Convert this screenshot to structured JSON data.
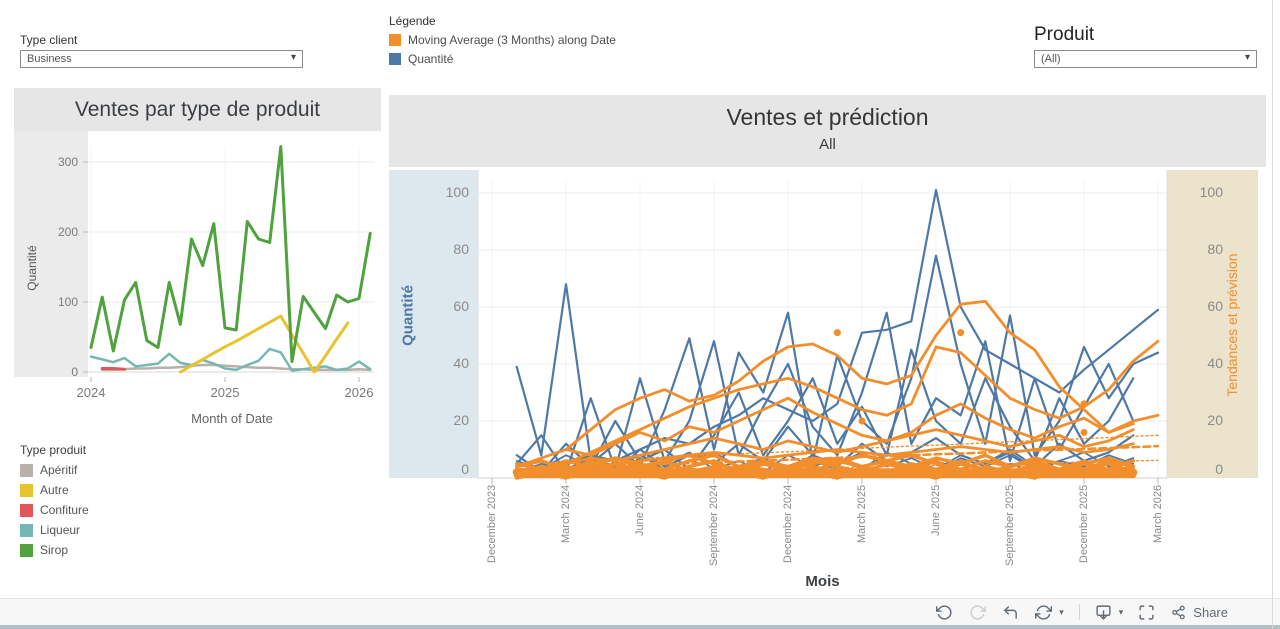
{
  "header": {
    "type_client_label": "Type client",
    "type_client_value": "Business",
    "legend_title": "Légende",
    "legend_items": [
      {
        "label": "Moving Average (3 Months) along Date",
        "color": "#f28e2b"
      },
      {
        "label": "Quantité",
        "color": "#4e79a7"
      }
    ],
    "produit_label": "Produit",
    "produit_value": "(All)"
  },
  "left_panel": {
    "title": "Ventes par type de produit",
    "legend_title": "Type produit",
    "legend_items": [
      {
        "label": "Apéritif",
        "color": "#b9b0ab"
      },
      {
        "label": "Autre",
        "color": "#e8c32e"
      },
      {
        "label": "Confiture",
        "color": "#e15759"
      },
      {
        "label": "Liqueur",
        "color": "#76b7b2"
      },
      {
        "label": "Sirop",
        "color": "#4fa23d"
      }
    ]
  },
  "toolbar": {
    "icons": [
      "undo",
      "redo",
      "revert",
      "refresh",
      "download",
      "fullscreen",
      "share"
    ],
    "share_label": "Share"
  },
  "chart_data": [
    {
      "type": "line",
      "title": "Ventes par type de produit",
      "xlabel": "Month of Date",
      "ylabel": "Quantité",
      "x_ticks": [
        {
          "label": "2024",
          "month": 0
        },
        {
          "label": "2025",
          "month": 12
        },
        {
          "label": "2026",
          "month": 24
        }
      ],
      "y_ticks": [
        0,
        100,
        200,
        300
      ],
      "ylim": [
        0,
        330
      ],
      "months_start": "2024-01",
      "series": [
        {
          "name": "Apéritif",
          "color": "#b9b0ab",
          "width": 2.5,
          "values": [
            null,
            3,
            3,
            4,
            5,
            5,
            6,
            6,
            7,
            9,
            10,
            10,
            9,
            8,
            7,
            6,
            6,
            5,
            4,
            4,
            3,
            3,
            3,
            3,
            4,
            3
          ]
        },
        {
          "name": "Confiture",
          "color": "#e15759",
          "width": 3,
          "values": [
            null,
            5,
            5,
            4,
            null,
            null,
            null,
            null,
            null,
            null,
            null,
            null,
            null,
            null,
            null,
            null,
            null,
            null,
            null,
            null,
            null,
            null,
            null,
            null,
            null,
            null
          ]
        },
        {
          "name": "Liqueur",
          "color": "#76b7b2",
          "width": 2.5,
          "values": [
            22,
            18,
            14,
            20,
            8,
            10,
            12,
            26,
            13,
            10,
            17,
            12,
            5,
            3,
            10,
            16,
            33,
            28,
            2,
            4,
            6,
            8,
            3,
            5,
            15,
            4
          ]
        },
        {
          "name": "Autre",
          "color": "#e8c32e",
          "width": 3,
          "values": [
            null,
            null,
            null,
            null,
            null,
            null,
            null,
            null,
            0,
            9,
            18,
            27,
            36,
            44,
            53,
            62,
            71,
            80,
            53,
            27,
            0,
            23,
            47,
            70,
            null,
            null
          ]
        },
        {
          "name": "Sirop",
          "color": "#4fa23d",
          "width": 3,
          "values": [
            35,
            107,
            30,
            103,
            128,
            45,
            35,
            128,
            68,
            190,
            152,
            212,
            63,
            60,
            215,
            190,
            185,
            322,
            15,
            108,
            85,
            62,
            110,
            100,
            105,
            198
          ]
        }
      ]
    },
    {
      "type": "line",
      "title": "Ventes et prédiction",
      "subtitle": "All",
      "xlabel": "Mois",
      "ylabel_left": "Quantité",
      "ylabel_right": "Tendances et prévision",
      "legend": [
        "Moving Average (3 Months) along Date",
        "Quantité"
      ],
      "x_ticks": [
        {
          "label": "December 2023",
          "month": 0
        },
        {
          "label": "March 2024",
          "month": 3
        },
        {
          "label": "June 2024",
          "month": 6
        },
        {
          "label": "September 2024",
          "month": 9
        },
        {
          "label": "December 2024",
          "month": 12
        },
        {
          "label": "March 2025",
          "month": 15
        },
        {
          "label": "June 2025",
          "month": 18
        },
        {
          "label": "September 2025",
          "month": 21
        },
        {
          "label": "December 2025",
          "month": 24
        },
        {
          "label": "March 2026",
          "month": 27
        }
      ],
      "y_ticks": [
        0,
        20,
        40,
        60,
        80,
        100
      ],
      "ylim": [
        0,
        105
      ],
      "color_quantite": "#4e79a7",
      "color_moving_avg": "#f28e2b",
      "axis_band_left_color": "#dce8ee",
      "axis_band_right_color": "#ece3cc",
      "noise_quantite": [
        {
          "width": 1.8,
          "values": [
            null,
            2,
            5,
            3,
            7,
            4,
            8,
            3,
            6,
            9,
            4,
            7,
            3,
            8,
            5,
            9,
            4,
            7,
            3,
            8,
            5,
            9,
            3,
            6,
            4,
            8,
            5,
            null
          ]
        },
        {
          "width": 1.8,
          "values": [
            null,
            6,
            3,
            8,
            4,
            2,
            7,
            5,
            9,
            3,
            6,
            2,
            8,
            4,
            7,
            3,
            9,
            5,
            2,
            7,
            4,
            8,
            3,
            6,
            9,
            4,
            7,
            null
          ]
        },
        {
          "width": 1.8,
          "values": [
            null,
            1,
            4,
            2,
            5,
            3,
            1,
            6,
            2,
            4,
            1,
            5,
            2,
            6,
            3,
            1,
            5,
            2,
            6,
            3,
            1,
            5,
            2,
            6,
            1,
            3,
            2,
            null
          ]
        }
      ],
      "series_quantite": [
        {
          "width": 2.2,
          "values": [
            null,
            39,
            8,
            68,
            6,
            2,
            10,
            4,
            8,
            5,
            12,
            6,
            18,
            8,
            4,
            12,
            6,
            9,
            14,
            8,
            5,
            10,
            4,
            12,
            6,
            9,
            15,
            null
          ]
        },
        {
          "width": 2.2,
          "values": [
            null,
            2,
            3,
            5,
            8,
            6,
            10,
            14,
            12,
            18,
            22,
            28,
            24,
            20,
            26,
            51,
            52,
            55,
            101,
            60,
            45,
            40,
            35,
            30,
            38,
            45,
            52,
            59
          ]
        },
        {
          "width": 2.2,
          "values": [
            null,
            1,
            2,
            3,
            5,
            12,
            4,
            24,
            49,
            10,
            44,
            30,
            58,
            6,
            43,
            20,
            12,
            35,
            78,
            40,
            12,
            57,
            8,
            20,
            46,
            28,
            40,
            44
          ]
        },
        {
          "width": 2.2,
          "values": [
            null,
            5,
            15,
            2,
            28,
            3,
            35,
            6,
            20,
            48,
            8,
            25,
            40,
            18,
            8,
            30,
            58,
            12,
            28,
            22,
            48,
            6,
            35,
            10,
            25,
            40,
            20,
            null
          ]
        },
        {
          "width": 2.2,
          "values": [
            null,
            8,
            2,
            12,
            4,
            20,
            6,
            10,
            3,
            15,
            30,
            8,
            20,
            35,
            12,
            25,
            8,
            45,
            20,
            12,
            35,
            18,
            6,
            28,
            12,
            20,
            35,
            null
          ]
        }
      ],
      "noise_moving_avg": [
        {
          "width": 8,
          "values": [
            null,
            2,
            2,
            2,
            2,
            2,
            2,
            2,
            2,
            2,
            2,
            2,
            2,
            2,
            2,
            2,
            2,
            2,
            2,
            2,
            2,
            2,
            2,
            2,
            2,
            2,
            2,
            null
          ]
        },
        {
          "width": 6,
          "values": [
            null,
            1,
            1,
            1,
            1,
            1,
            1,
            1,
            1,
            1,
            1,
            1,
            1,
            1,
            1,
            1,
            1,
            1,
            1,
            1,
            1,
            1,
            1,
            1,
            1,
            1,
            1,
            null
          ]
        },
        {
          "width": 3.5,
          "values": [
            null,
            3,
            1,
            4,
            2,
            5,
            3,
            6,
            2,
            4,
            1,
            5,
            3,
            6,
            4,
            2,
            5,
            3,
            6,
            1,
            4,
            2,
            5,
            3,
            6,
            2,
            4,
            null
          ]
        },
        {
          "width": 3.5,
          "values": [
            null,
            1,
            2,
            1,
            3,
            2,
            4,
            1,
            3,
            2,
            4,
            3,
            1,
            4,
            2,
            3,
            1,
            4,
            2,
            5,
            3,
            1,
            4,
            2,
            3,
            5,
            2,
            null
          ]
        },
        {
          "width": 3.5,
          "values": [
            null,
            4,
            6,
            3,
            5,
            7,
            4,
            6,
            8,
            5,
            3,
            6,
            4,
            7,
            5,
            8,
            6,
            4,
            7,
            5,
            8,
            4,
            6,
            3,
            5,
            7,
            4,
            null
          ]
        },
        {
          "width": 3.5,
          "values": [
            null,
            2,
            4,
            2,
            6,
            3,
            5,
            2,
            4,
            6,
            2,
            5,
            3,
            2,
            6,
            4,
            2,
            5,
            3,
            6,
            2,
            4,
            6,
            2,
            5,
            3,
            6,
            null
          ]
        },
        {
          "width": 3.5,
          "values": [
            null,
            0,
            2,
            0,
            3,
            1,
            2,
            0,
            3,
            1,
            2,
            0,
            3,
            2,
            0,
            3,
            1,
            2,
            0,
            3,
            1,
            2,
            0,
            3,
            1,
            2,
            1,
            null
          ]
        },
        {
          "width": 3.5,
          "values": [
            null,
            5,
            3,
            6,
            4,
            7,
            5,
            3,
            6,
            8,
            4,
            6,
            3,
            5,
            7,
            4,
            6,
            8,
            5,
            3,
            6,
            4,
            7,
            5,
            3,
            6,
            4,
            null
          ]
        }
      ],
      "series_moving_avg": [
        {
          "width": 2.8,
          "values": [
            null,
            null,
            null,
            10,
            17,
            24,
            28,
            31,
            27,
            29,
            34,
            41,
            46,
            47,
            43,
            35,
            33,
            36,
            50,
            61,
            62,
            51,
            45,
            32,
            24,
            16,
            19,
            null
          ]
        },
        {
          "width": 2.8,
          "values": [
            null,
            null,
            null,
            5,
            9,
            13,
            17,
            21,
            25,
            28,
            31,
            33,
            35,
            32,
            28,
            24,
            22,
            26,
            46,
            44,
            36,
            28,
            24,
            21,
            25,
            31,
            41,
            48
          ]
        },
        {
          "width": 2.8,
          "values": [
            null,
            4,
            7,
            10,
            8,
            12,
            16,
            13,
            18,
            16,
            20,
            24,
            28,
            23,
            19,
            15,
            13,
            16,
            22,
            26,
            21,
            17,
            14,
            18,
            21,
            16,
            20,
            22
          ]
        },
        {
          "width": 2.8,
          "values": [
            null,
            2,
            3,
            5,
            7,
            6,
            8,
            10,
            12,
            14,
            12,
            10,
            13,
            11,
            9,
            11,
            13,
            15,
            17,
            15,
            13,
            11,
            13,
            15,
            11,
            13,
            17,
            null
          ]
        },
        {
          "width": 2.8,
          "values": [
            null,
            1,
            2,
            3,
            4,
            5,
            6,
            7,
            8,
            9,
            8,
            7,
            8,
            9,
            10,
            9,
            8,
            9,
            10,
            11,
            10,
            9,
            10,
            11,
            9,
            10,
            12,
            null
          ]
        }
      ],
      "trend_lines": [
        {
          "width": 2.5,
          "dash": "7,4",
          "values": [
            null,
            3,
            3.3,
            3.6,
            3.9,
            4.2,
            4.5,
            4.9,
            5.2,
            5.5,
            5.8,
            6.1,
            6.4,
            6.8,
            7.1,
            7.4,
            7.7,
            8,
            8.3,
            8.6,
            9,
            9.3,
            9.6,
            9.9,
            10.2,
            10.5,
            10.8,
            11.2
          ]
        },
        {
          "width": 1.4,
          "dash": "2,3",
          "values": [
            null,
            5,
            5.4,
            5.8,
            6.2,
            6.5,
            6.9,
            7.3,
            7.7,
            8.1,
            8.5,
            8.8,
            9.2,
            9.6,
            10,
            10.4,
            10.8,
            11.2,
            11.5,
            11.9,
            12.3,
            12.7,
            13.1,
            13.5,
            13.8,
            14.2,
            14.6,
            15
          ]
        },
        {
          "width": 1.4,
          "dash": "2,3",
          "values": [
            null,
            1,
            1.2,
            1.4,
            1.6,
            1.8,
            2,
            2.2,
            2.4,
            2.6,
            2.8,
            3,
            3.2,
            3.4,
            3.6,
            3.8,
            4,
            4.2,
            4.4,
            4.6,
            4.8,
            5,
            5.2,
            5.4,
            5.6,
            5.8,
            6,
            6.2
          ]
        }
      ],
      "forecast_dots": [
        [
          14,
          51
        ],
        [
          19,
          51
        ],
        [
          15,
          20
        ],
        [
          24,
          26
        ],
        [
          24,
          16
        ]
      ]
    }
  ]
}
